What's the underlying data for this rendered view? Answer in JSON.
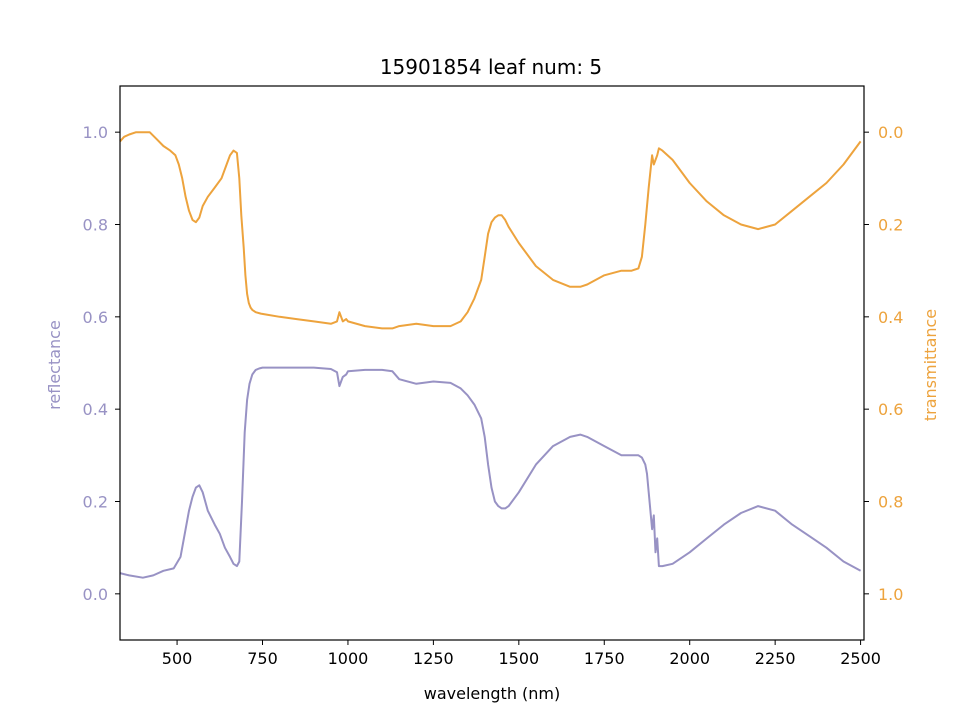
{
  "chart_data": {
    "type": "line",
    "title": "15901854 leaf num: 5",
    "xlabel": "wavelength (nm)",
    "ylabel_left": "reflectance",
    "ylabel_right": "transmittance",
    "xlim": [
      333,
      2510
    ],
    "ylim_left": [
      -0.1,
      1.1
    ],
    "ylim_right": [
      1.1,
      -0.1
    ],
    "right_axis_inverted": true,
    "grid": false,
    "x_ticks": [
      "500",
      "750",
      "1000",
      "1250",
      "1500",
      "1750",
      "2000",
      "2250",
      "2500"
    ],
    "x_tick_values": [
      500,
      750,
      1000,
      1250,
      1500,
      1750,
      2000,
      2250,
      2500
    ],
    "left_ticks": [
      "0.0",
      "0.2",
      "0.4",
      "0.6",
      "0.8",
      "1.0"
    ],
    "left_tick_values": [
      0.0,
      0.2,
      0.4,
      0.6,
      0.8,
      1.0
    ],
    "right_ticks": [
      "0.0",
      "0.2",
      "0.4",
      "0.6",
      "0.8",
      "1.0"
    ],
    "right_tick_values": [
      0.0,
      0.2,
      0.4,
      0.6,
      0.8,
      1.0
    ],
    "colors": {
      "reflectance": "#9892c4",
      "transmittance": "#eda33d"
    },
    "series": [
      {
        "axis": "left",
        "color": "#9892c4",
        "x": [
          333,
          360,
          400,
          430,
          460,
          490,
          510,
          525,
          535,
          545,
          555,
          565,
          575,
          590,
          610,
          625,
          640,
          655,
          665,
          675,
          682,
          690,
          698,
          705,
          712,
          720,
          730,
          740,
          750,
          800,
          850,
          900,
          950,
          968,
          975,
          985,
          995,
          1000,
          1050,
          1100,
          1130,
          1150,
          1200,
          1250,
          1300,
          1330,
          1350,
          1370,
          1390,
          1400,
          1410,
          1420,
          1430,
          1440,
          1450,
          1460,
          1470,
          1500,
          1550,
          1600,
          1650,
          1680,
          1700,
          1750,
          1800,
          1830,
          1850,
          1860,
          1870,
          1875,
          1880,
          1890,
          1895,
          1900,
          1905,
          1910,
          1920,
          1950,
          2000,
          2050,
          2100,
          2150,
          2200,
          2250,
          2300,
          2350,
          2400,
          2450,
          2500
        ],
        "y": [
          0.045,
          0.04,
          0.035,
          0.04,
          0.05,
          0.055,
          0.08,
          0.14,
          0.18,
          0.21,
          0.23,
          0.235,
          0.22,
          0.18,
          0.15,
          0.13,
          0.1,
          0.08,
          0.065,
          0.06,
          0.07,
          0.2,
          0.35,
          0.42,
          0.455,
          0.475,
          0.485,
          0.488,
          0.49,
          0.49,
          0.49,
          0.49,
          0.487,
          0.48,
          0.45,
          0.47,
          0.475,
          0.482,
          0.485,
          0.485,
          0.482,
          0.465,
          0.455,
          0.46,
          0.457,
          0.445,
          0.43,
          0.41,
          0.38,
          0.34,
          0.28,
          0.23,
          0.2,
          0.19,
          0.185,
          0.185,
          0.19,
          0.22,
          0.28,
          0.32,
          0.34,
          0.345,
          0.34,
          0.32,
          0.3,
          0.3,
          0.3,
          0.295,
          0.28,
          0.26,
          0.22,
          0.14,
          0.17,
          0.09,
          0.12,
          0.06,
          0.06,
          0.065,
          0.09,
          0.12,
          0.15,
          0.175,
          0.19,
          0.18,
          0.15,
          0.125,
          0.1,
          0.07,
          0.05
        ]
      },
      {
        "axis": "right",
        "color": "#eda33d",
        "x": [
          333,
          345,
          360,
          380,
          400,
          420,
          440,
          460,
          480,
          495,
          505,
          515,
          525,
          535,
          545,
          555,
          565,
          575,
          590,
          610,
          630,
          645,
          655,
          665,
          675,
          682,
          688,
          695,
          700,
          705,
          710,
          715,
          720,
          730,
          745,
          760,
          800,
          850,
          900,
          950,
          968,
          975,
          985,
          995,
          1000,
          1050,
          1100,
          1130,
          1150,
          1200,
          1250,
          1300,
          1330,
          1350,
          1370,
          1390,
          1400,
          1410,
          1420,
          1430,
          1440,
          1450,
          1460,
          1470,
          1500,
          1550,
          1600,
          1650,
          1680,
          1700,
          1750,
          1800,
          1830,
          1850,
          1860,
          1870,
          1880,
          1890,
          1895,
          1900,
          1905,
          1910,
          1920,
          1950,
          2000,
          2050,
          2100,
          2150,
          2200,
          2250,
          2300,
          2350,
          2400,
          2450,
          2500
        ],
        "y": [
          0.02,
          0.01,
          0.005,
          0.0,
          0.0,
          0.0,
          0.015,
          0.03,
          0.04,
          0.05,
          0.07,
          0.1,
          0.14,
          0.17,
          0.19,
          0.195,
          0.185,
          0.16,
          0.14,
          0.12,
          0.1,
          0.07,
          0.05,
          0.04,
          0.045,
          0.1,
          0.18,
          0.25,
          0.31,
          0.35,
          0.37,
          0.38,
          0.385,
          0.39,
          0.393,
          0.395,
          0.4,
          0.405,
          0.41,
          0.415,
          0.41,
          0.39,
          0.41,
          0.405,
          0.41,
          0.42,
          0.425,
          0.425,
          0.42,
          0.415,
          0.42,
          0.42,
          0.41,
          0.39,
          0.36,
          0.32,
          0.27,
          0.22,
          0.195,
          0.185,
          0.18,
          0.18,
          0.19,
          0.205,
          0.24,
          0.29,
          0.32,
          0.335,
          0.335,
          0.33,
          0.31,
          0.3,
          0.3,
          0.295,
          0.27,
          0.2,
          0.12,
          0.05,
          0.07,
          0.06,
          0.05,
          0.035,
          0.04,
          0.06,
          0.11,
          0.15,
          0.18,
          0.2,
          0.21,
          0.2,
          0.17,
          0.14,
          0.11,
          0.07,
          0.02
        ]
      }
    ]
  }
}
